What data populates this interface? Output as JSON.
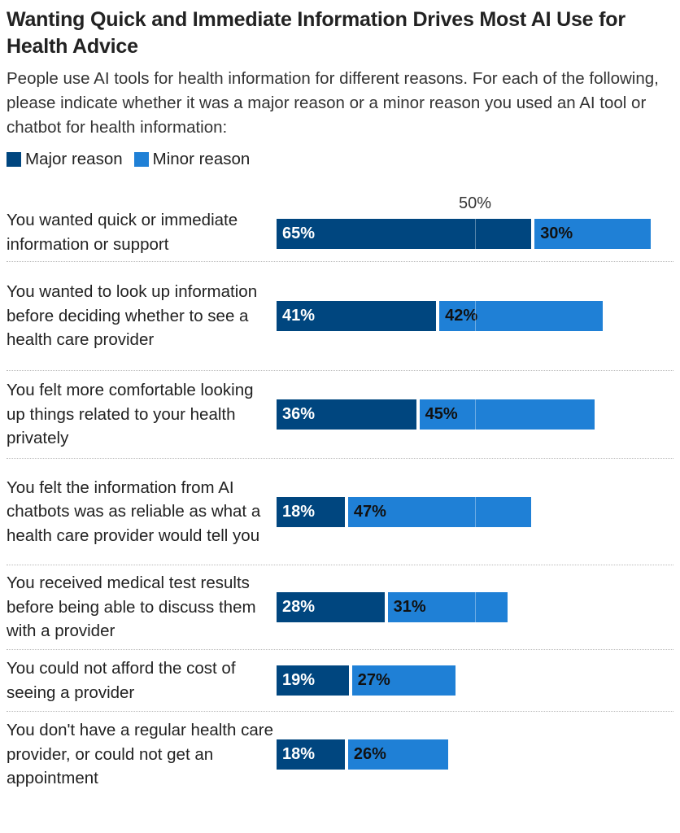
{
  "title": "Wanting Quick and Immediate Information Drives Most AI Use for Health Advice",
  "subtitle": "People use AI tools for health information for different reasons. For each of the following, please indicate whether it was a major reason or a minor reason you used an AI tool or chatbot for health information:",
  "chart_data": {
    "type": "bar",
    "stacked": true,
    "orientation": "horizontal",
    "reference_line": {
      "value": 50,
      "label": "50%"
    },
    "legend_position": "top-left",
    "categories": [
      "You wanted quick or immediate information or support",
      "You wanted to look up information before deciding whether to see a health care provider",
      "You felt more comfortable looking up things related to your health privately",
      "You felt the information from AI chatbots was as reliable as what a health care provider would tell you",
      "You received medical test results before being able to discuss them with a provider",
      "You could not afford the cost of seeing a provider",
      "You don't have a regular health care provider, or could not get an appointment"
    ],
    "series": [
      {
        "name": "Major reason",
        "color": "#00467f",
        "values": [
          65,
          41,
          36,
          18,
          28,
          19,
          18
        ]
      },
      {
        "name": "Minor reason",
        "color": "#1f80d6",
        "values": [
          30,
          42,
          45,
          47,
          31,
          27,
          26
        ]
      }
    ]
  }
}
